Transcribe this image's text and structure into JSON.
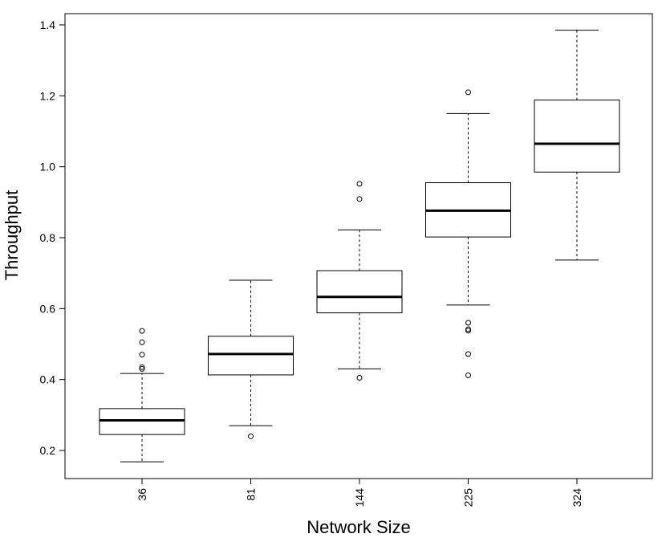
{
  "chart_data": {
    "type": "boxplot",
    "title": "",
    "xlabel": "Network Size",
    "ylabel": "Throughput",
    "ylim": [
      0.12,
      1.43
    ],
    "yticks": [
      0.2,
      0.4,
      0.6,
      0.8,
      1.0,
      1.2,
      1.4
    ],
    "ytick_labels": [
      "0.2",
      "0.4",
      "0.6",
      "0.8",
      "1.0",
      "1.2",
      "1.4"
    ],
    "grid": false,
    "categories": [
      "36",
      "81",
      "144",
      "225",
      "324"
    ],
    "boxes": [
      {
        "category": "36",
        "whisker_low": 0.168,
        "q1": 0.245,
        "median": 0.285,
        "q3": 0.318,
        "whisker_high": 0.417,
        "outliers": [
          0.43,
          0.435,
          0.47,
          0.505,
          0.537
        ]
      },
      {
        "category": "81",
        "whisker_low": 0.27,
        "q1": 0.413,
        "median": 0.472,
        "q3": 0.522,
        "whisker_high": 0.68,
        "outliers": [
          0.24
        ]
      },
      {
        "category": "144",
        "whisker_low": 0.43,
        "q1": 0.588,
        "median": 0.633,
        "q3": 0.707,
        "whisker_high": 0.822,
        "outliers": [
          0.405,
          0.909,
          0.952
        ]
      },
      {
        "category": "225",
        "whisker_low": 0.61,
        "q1": 0.802,
        "median": 0.876,
        "q3": 0.955,
        "whisker_high": 1.15,
        "outliers": [
          0.412,
          0.472,
          0.538,
          0.542,
          0.56,
          1.21
        ]
      },
      {
        "category": "324",
        "whisker_low": 0.737,
        "q1": 0.985,
        "median": 1.065,
        "q3": 1.188,
        "whisker_high": 1.385,
        "outliers": []
      }
    ]
  }
}
